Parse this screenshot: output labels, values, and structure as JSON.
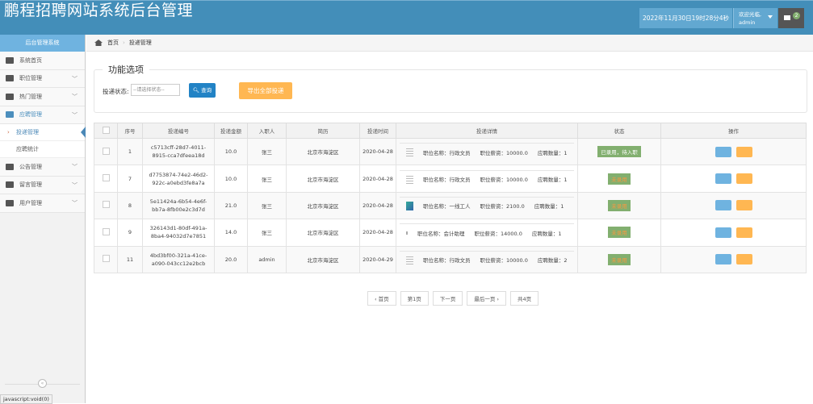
{
  "header": {
    "title": "鹏程招聘网站系统后台管理",
    "datetime": "2022年11月30日19时28分4秒",
    "welcome": "欢迎光临,",
    "username": "admin",
    "mail_count": "2"
  },
  "sidebar": {
    "title": "后台管理系统",
    "items": [
      {
        "label": "系统首页",
        "icon": "dashboard-icon"
      },
      {
        "label": "职位管理",
        "icon": "desktop-icon"
      },
      {
        "label": "热门管理",
        "icon": "eye-icon"
      },
      {
        "label": "应聘管理",
        "icon": "list-icon",
        "children": [
          {
            "label": "投递管理",
            "active": true
          },
          {
            "label": "应聘统计"
          }
        ]
      },
      {
        "label": "公告管理",
        "icon": "picture-icon"
      },
      {
        "label": "留言管理",
        "icon": "edit-icon"
      },
      {
        "label": "用户管理",
        "icon": "users-icon"
      }
    ]
  },
  "breadcrumb": {
    "home": "首页",
    "current": "投递管理"
  },
  "filter": {
    "legend": "功能选项",
    "status_label": "投递状态:",
    "status_placeholder": "--请选择状态--",
    "query_button": "查询",
    "export_button": "导出全部投递"
  },
  "table": {
    "headers": [
      "序号",
      "投递编号",
      "投递金额",
      "入职人",
      "简历",
      "投递时间",
      "投递详情",
      "状态",
      "操作"
    ],
    "rows": [
      {
        "no": "1",
        "code": "c5713cff-28d7-4011-8915-cca7dfeea18d",
        "amount": "10.0",
        "person": "张三",
        "resume": "北京市海淀区",
        "time": "2020-04-28",
        "job": "职位名称：行政文员",
        "salary": "职位薪资：10000.0",
        "count": "应聘数量：1",
        "status": "已录用，待入职"
      },
      {
        "no": "7",
        "code": "d7753874-74e2-46d2-922c-a0ebd3fe8a7a",
        "amount": "10.0",
        "person": "张三",
        "resume": "北京市海淀区",
        "time": "2020-04-28",
        "job": "职位名称：行政文员",
        "salary": "职位薪资：10000.0",
        "count": "应聘数量：1",
        "status": "未录用"
      },
      {
        "no": "8",
        "code": "5e11424a-6b54-4e6f-bb7a-8fb00e2c3d7d",
        "amount": "21.0",
        "person": "张三",
        "resume": "北京市海淀区",
        "time": "2020-04-28",
        "job": "职位名称：一线工人",
        "salary": "职位薪资：2100.0",
        "count": "应聘数量：1",
        "status": "未录用"
      },
      {
        "no": "9",
        "code": "326143d1-80df-491a-8ba4-94032d7e7851",
        "amount": "14.0",
        "person": "张三",
        "resume": "北京市海淀区",
        "time": "2020-04-28",
        "job": "职位名称：会计助理",
        "salary": "职位薪资：14000.0",
        "count": "应聘数量：1",
        "status": "未录用"
      },
      {
        "no": "11",
        "code": "4bd3bf00-321a-41ce-a090-043cc12e2bcb",
        "amount": "20.0",
        "person": "admin",
        "resume": "北京市海淀区",
        "time": "2020-04-29",
        "job": "职位名称：行政文员",
        "salary": "职位薪资：10000.0",
        "count": "应聘数量：2",
        "status": "未录用"
      }
    ]
  },
  "pager": {
    "first": "‹ 首页",
    "page": "第1页",
    "next": "下一页",
    "last": "最后一页 ›",
    "total": "共4页"
  },
  "statusbar": "javascript:void(0)",
  "colors": {
    "header": "#438eb9",
    "accent": "#6fb3e0",
    "success": "#82af6f",
    "warning": "#ffb752",
    "primary": "#2283c5"
  }
}
